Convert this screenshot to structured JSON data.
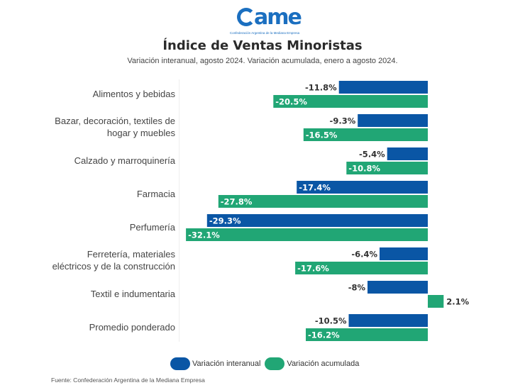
{
  "header": {
    "logo_text": "ame",
    "logo_subtitle": "Confederación Argentina de la Mediana Empresa",
    "title": "Índice de Ventas Minoristas",
    "subtitle": "Variación interanual, agosto 2024. Variación acumulada, enero a agosto 2024."
  },
  "colors": {
    "interanual": "#0a56a5",
    "acumulada": "#21a675"
  },
  "chart_data": {
    "type": "bar",
    "orientation": "horizontal",
    "title": "Índice de Ventas Minoristas",
    "subtitle": "Variación interanual, agosto 2024. Variación acumulada, enero a agosto 2024.",
    "xlabel": "",
    "ylabel": "",
    "xlim": [
      -32.1,
      2.1
    ],
    "grid": false,
    "legend_position": "bottom-center",
    "categories": [
      [
        "Alimentos y bebidas"
      ],
      [
        "Bazar, decoración, textiles de",
        "hogar y muebles"
      ],
      [
        "Calzado y marroquinería"
      ],
      [
        "Farmacia"
      ],
      [
        "Perfumería"
      ],
      [
        "Ferretería, materiales",
        "eléctricos y de la construcción"
      ],
      [
        "Textil e indumentaria"
      ],
      [
        "Promedio ponderado"
      ]
    ],
    "series": [
      {
        "name": "Variación interanual",
        "color": "#0a56a5",
        "values": [
          -11.8,
          -9.3,
          -5.4,
          -17.4,
          -29.3,
          -6.4,
          -8,
          -10.5
        ],
        "labels": [
          "-11.8%",
          "-9.3%",
          "-5.4%",
          "-17.4%",
          "-29.3%",
          "-6.4%",
          "-8%",
          "-10.5%"
        ]
      },
      {
        "name": "Variación acumulada",
        "color": "#21a675",
        "values": [
          -20.5,
          -16.5,
          -10.8,
          -27.8,
          -32.1,
          -17.6,
          2.1,
          -16.2
        ],
        "labels": [
          "-20.5%",
          "-16.5%",
          "-10.8%",
          "-27.8%",
          "-32.1%",
          "-17.6%",
          "2.1%",
          "-16.2%"
        ]
      }
    ]
  },
  "legend": {
    "items": [
      {
        "label": "Variación interanual"
      },
      {
        "label": "Variación acumulada"
      }
    ]
  },
  "footer": {
    "source": "Fuente: Confederación Argentina de la Mediana Empresa"
  }
}
